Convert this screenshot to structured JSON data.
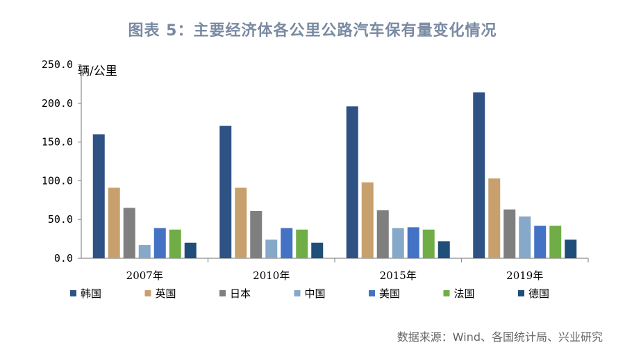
{
  "title": "图表 5：主要经济体各公里公路汽车保有量变化情况",
  "source": "数据来源：Wind、各国统计局、兴业研究",
  "chart_data": {
    "type": "bar",
    "ylabel": "辆/公里",
    "ylim": [
      0,
      250
    ],
    "yticks": [
      "0.0",
      "50.0",
      "100.0",
      "150.0",
      "200.0",
      "250.0"
    ],
    "ytick_values": [
      0,
      50,
      100,
      150,
      200,
      250
    ],
    "categories": [
      "2007年",
      "2010年",
      "2015年",
      "2019年"
    ],
    "legend_position": "bottom",
    "grid": false,
    "series": [
      {
        "name": "韩国",
        "color": "#2e5283",
        "values": [
          160,
          171,
          196,
          214
        ]
      },
      {
        "name": "英国",
        "color": "#c8a06e",
        "values": [
          91,
          91,
          98,
          103
        ]
      },
      {
        "name": "日本",
        "color": "#7f7f7f",
        "values": [
          65,
          61,
          62,
          63
        ]
      },
      {
        "name": "中国",
        "color": "#86a8c9",
        "values": [
          17,
          24,
          39,
          54
        ]
      },
      {
        "name": "美国",
        "color": "#4472c4",
        "values": [
          39,
          39,
          40,
          42
        ]
      },
      {
        "name": "法国",
        "color": "#70ad47",
        "values": [
          37,
          37,
          37,
          42
        ]
      },
      {
        "name": "德国",
        "color": "#1f4e79",
        "values": [
          20,
          20,
          22,
          24
        ]
      }
    ]
  }
}
